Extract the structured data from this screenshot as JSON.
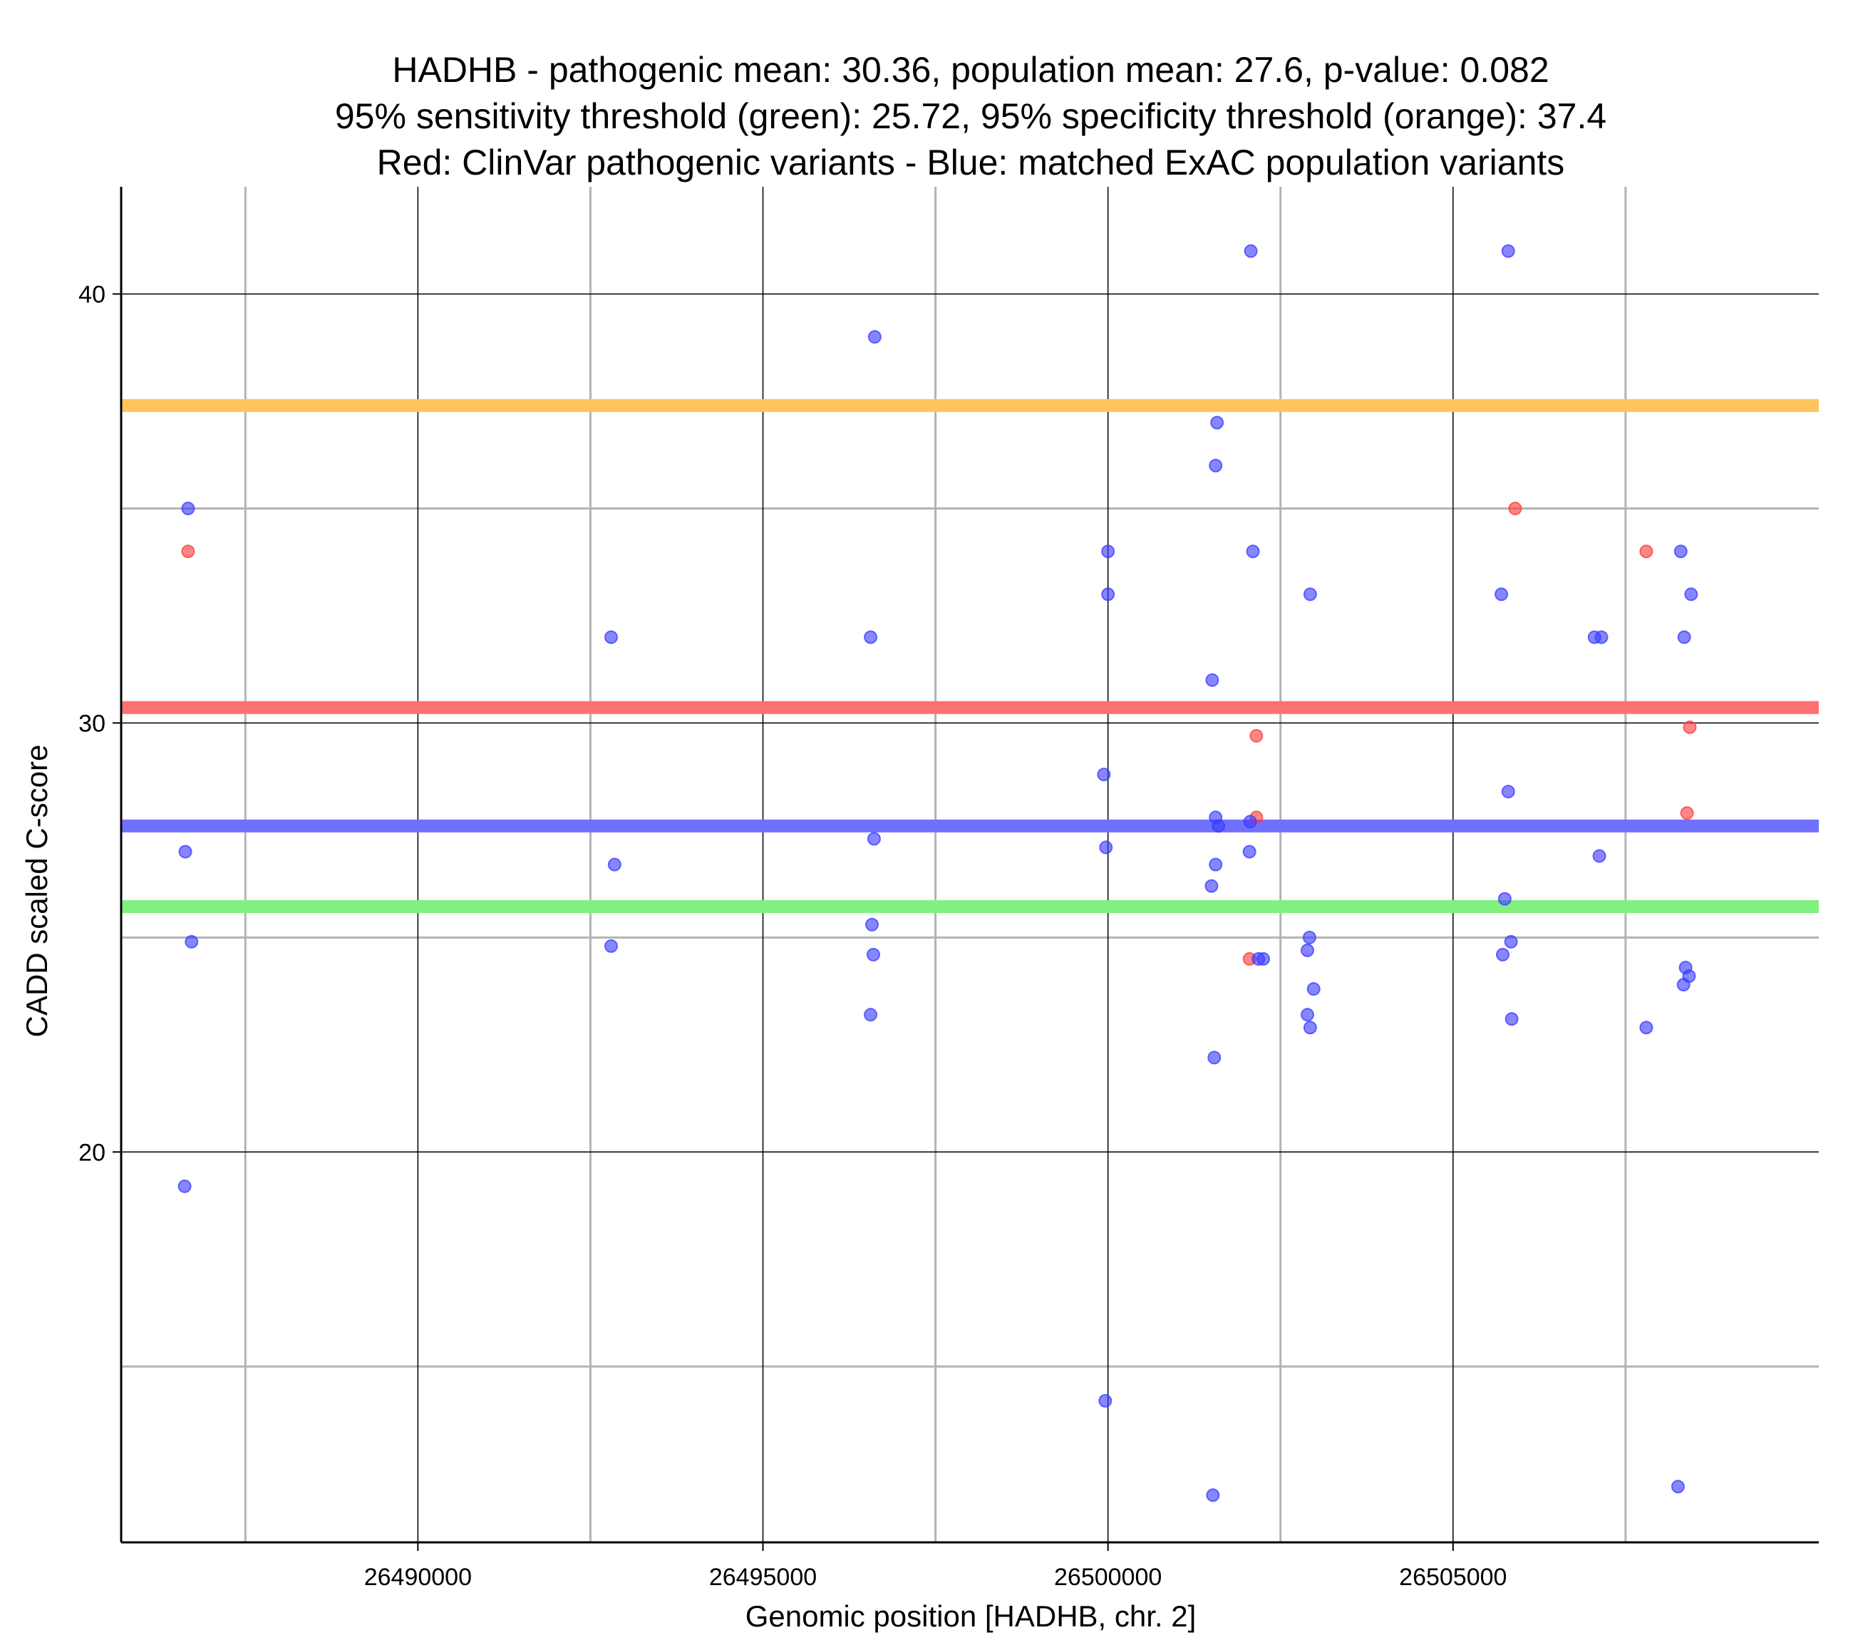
{
  "chart_data": {
    "type": "scatter",
    "title_lines": [
      "HADHB - pathogenic mean: 30.36, population mean: 27.6, p-value: 0.082",
      "95% sensitivity threshold (green): 25.72, 95% specificity threshold (orange): 37.4",
      "Red: ClinVar pathogenic variants - Blue: matched ExAC population variants"
    ],
    "xlabel": "Genomic position [HADHB, chr. 2]",
    "ylabel": "CADD scaled C-score",
    "xlim": [
      26485700,
      26510300
    ],
    "ylim": [
      10.9,
      42.5
    ],
    "x_major_ticks": [
      26490000,
      26495000,
      26500000,
      26505000
    ],
    "x_minor_ticks": [
      26487500,
      26492500,
      26497500,
      26502500,
      26507500
    ],
    "y_major_ticks": [
      20,
      30,
      40
    ],
    "y_minor_ticks": [
      15,
      25,
      35
    ],
    "x_tick_labels": [
      "26490000",
      "26495000",
      "26500000",
      "26505000"
    ],
    "y_tick_labels": [
      "20",
      "30",
      "40"
    ],
    "reference_lines": [
      {
        "name": "specificity-threshold",
        "y": 37.4,
        "color": "#FFC55C"
      },
      {
        "name": "pathogenic-mean",
        "y": 30.36,
        "color": "#FF7070"
      },
      {
        "name": "population-mean",
        "y": 27.6,
        "color": "#7070FF"
      },
      {
        "name": "sensitivity-threshold",
        "y": 25.72,
        "color": "#80F080"
      }
    ],
    "series": [
      {
        "name": "ClinVar pathogenic variants",
        "color": "#FF3B3B",
        "points": [
          [
            26486670,
            34
          ],
          [
            26502150,
            29.7
          ],
          [
            26502050,
            24.5
          ],
          [
            26502150,
            27.8
          ],
          [
            26505900,
            35
          ],
          [
            26507800,
            34
          ],
          [
            26508430,
            29.9
          ],
          [
            26508390,
            27.9
          ]
        ]
      },
      {
        "name": "matched ExAC population variants",
        "color": "#3B3BFF",
        "points": [
          [
            26486670,
            35
          ],
          [
            26486630,
            27
          ],
          [
            26486720,
            24.9
          ],
          [
            26486620,
            19.2
          ],
          [
            26492800,
            32
          ],
          [
            26492850,
            26.7
          ],
          [
            26492800,
            24.8
          ],
          [
            26496620,
            39
          ],
          [
            26496560,
            32
          ],
          [
            26496610,
            27.3
          ],
          [
            26496580,
            25.3
          ],
          [
            26496600,
            24.6
          ],
          [
            26496560,
            23.2
          ],
          [
            26500000,
            34
          ],
          [
            26500000,
            33
          ],
          [
            26499940,
            28.8
          ],
          [
            26499970,
            27.1
          ],
          [
            26499960,
            14.2
          ],
          [
            26501580,
            37
          ],
          [
            26501560,
            36
          ],
          [
            26501510,
            31
          ],
          [
            26501560,
            27.8
          ],
          [
            26501600,
            27.6
          ],
          [
            26501560,
            26.7
          ],
          [
            26501500,
            26.2
          ],
          [
            26501540,
            22.2
          ],
          [
            26501520,
            12
          ],
          [
            26502070,
            41
          ],
          [
            26502100,
            34
          ],
          [
            26502060,
            27.7
          ],
          [
            26502050,
            27
          ],
          [
            26502180,
            24.5
          ],
          [
            26502250,
            24.5
          ],
          [
            26502930,
            33
          ],
          [
            26502920,
            25
          ],
          [
            26502890,
            24.7
          ],
          [
            26502980,
            23.8
          ],
          [
            26502890,
            23.2
          ],
          [
            26502930,
            22.9
          ],
          [
            26505800,
            41
          ],
          [
            26505700,
            33
          ],
          [
            26505800,
            28.4
          ],
          [
            26505750,
            25.9
          ],
          [
            26505720,
            24.6
          ],
          [
            26505840,
            24.9
          ],
          [
            26505850,
            23.1
          ],
          [
            26507050,
            32
          ],
          [
            26507150,
            32
          ],
          [
            26507120,
            26.9
          ],
          [
            26507800,
            22.9
          ],
          [
            26508300,
            34
          ],
          [
            26508450,
            33
          ],
          [
            26508350,
            32
          ],
          [
            26508370,
            24.3
          ],
          [
            26508420,
            24.1
          ],
          [
            26508340,
            23.9
          ],
          [
            26508260,
            12.2
          ]
        ]
      }
    ]
  }
}
